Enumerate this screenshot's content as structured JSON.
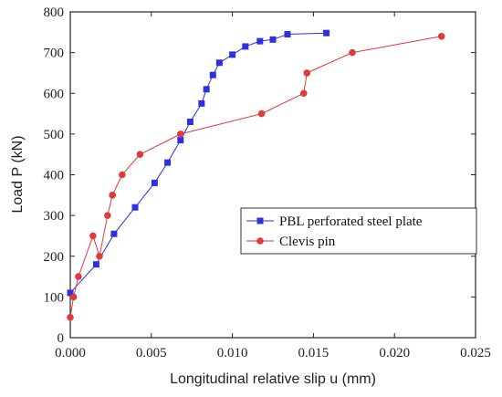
{
  "chart_data": {
    "type": "line",
    "xlabel": "Longitudinal relative slip u (mm)",
    "ylabel": "Load P (kN)",
    "xlim": [
      0,
      0.025
    ],
    "ylim": [
      0,
      800
    ],
    "xticks": [
      0,
      0.005,
      0.01,
      0.015,
      0.02,
      0.025
    ],
    "xtick_labels": [
      "0.000",
      "0.005",
      "0.010",
      "0.015",
      "0.020",
      "0.025"
    ],
    "yticks": [
      0,
      100,
      200,
      300,
      400,
      500,
      600,
      700,
      800
    ],
    "ytick_labels": [
      "0",
      "100",
      "200",
      "300",
      "400",
      "500",
      "600",
      "700",
      "800"
    ],
    "grid": false,
    "legend_position": "middle-right",
    "series": [
      {
        "name": "PBL perforated steel plate",
        "color": "#3030e0",
        "marker": "square",
        "x": [
          0,
          0.0016,
          0.0027,
          0.004,
          0.0052,
          0.006,
          0.0068,
          0.0074,
          0.0081,
          0.0084,
          0.0088,
          0.0092,
          0.01,
          0.0108,
          0.0117,
          0.0125,
          0.0134,
          0.0158
        ],
        "y": [
          110,
          180,
          255,
          320,
          380,
          430,
          485,
          530,
          575,
          610,
          645,
          675,
          695,
          715,
          728,
          732,
          745,
          748
        ]
      },
      {
        "name": "Clevis pin",
        "color": "#e03a3a",
        "marker": "circle",
        "x": [
          0,
          0.0002,
          0.0005,
          0.0014,
          0.0018,
          0.0023,
          0.0026,
          0.0032,
          0.0043,
          0.0068,
          0.0118,
          0.0144,
          0.0146,
          0.0174,
          0.0229
        ],
        "y": [
          50,
          100,
          150,
          250,
          200,
          300,
          350,
          400,
          450,
          500,
          550,
          600,
          650,
          700,
          740
        ]
      }
    ]
  }
}
